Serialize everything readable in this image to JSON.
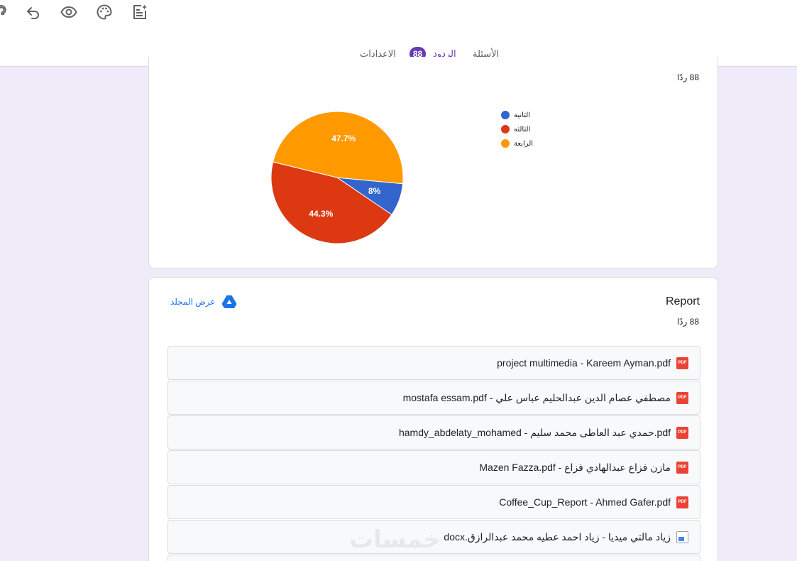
{
  "toolbar": {
    "icons": [
      "help-icon",
      "undo-icon",
      "preview-eye-icon",
      "palette-icon",
      "add-ai-note-icon"
    ]
  },
  "tabs": [
    {
      "label": "الأسئلة"
    },
    {
      "label": "الردود",
      "badge": "88",
      "active": true
    },
    {
      "label": "الإعدادات"
    }
  ],
  "question1": {
    "count": "88 ردًا",
    "legend": [
      {
        "label": "الثانية",
        "color": "#3366cc"
      },
      {
        "label": "الثالثه",
        "color": "#dc3912"
      },
      {
        "label": "الرابعة",
        "color": "#ff9900"
      }
    ]
  },
  "chart_data": {
    "type": "pie",
    "categories": [
      "الثانية",
      "الثالثه",
      "الرابعة"
    ],
    "values": [
      8,
      44.3,
      47.7
    ],
    "labels": [
      "8%",
      "44.3%",
      "47.7%"
    ],
    "colors": [
      "#3366cc",
      "#dc3912",
      "#ff9900"
    ],
    "legend_position": "right"
  },
  "report": {
    "title": "Report",
    "count": "88 ردًا",
    "view_folder": "عرض المجلد",
    "files": [
      {
        "name": "project multimedia - Kareem Ayman.pdf",
        "type": "pdf"
      },
      {
        "name": "مصطفي عصام الدين عبدالحليم عباس علي - mostafa essam.pdf",
        "type": "pdf"
      },
      {
        "name": "hamdy_abdelaty_mohamed - حمدي عبد العاطى محمد سليم.pdf",
        "type": "pdf"
      },
      {
        "name": "مازن فزاع عبدالهادي فزاع - Mazen Fazza.pdf",
        "type": "pdf"
      },
      {
        "name": "Coffee_Cup_Report - Ahmed Gafer.pdf",
        "type": "pdf"
      },
      {
        "name": "زياد مالتي ميديا - زياد احمد عطيه محمد عبدالرازق.docx",
        "type": "docx"
      }
    ],
    "pdf_badge": "PDF"
  },
  "watermark": "خمسات"
}
